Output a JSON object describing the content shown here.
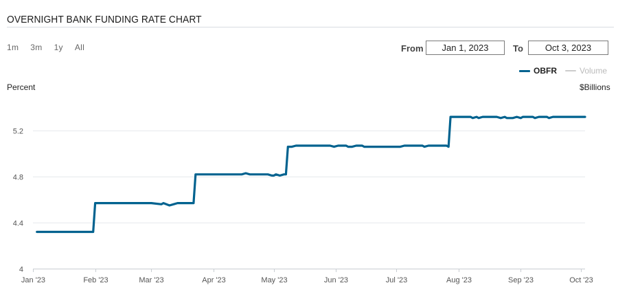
{
  "header": {
    "title": "OVERNIGHT BANK FUNDING RATE CHART"
  },
  "ranges": [
    "1m",
    "3m",
    "1y",
    "All"
  ],
  "date_range": {
    "from_label": "From",
    "from_value": "Jan 1, 2023",
    "to_label": "To",
    "to_value": "Oct 3, 2023"
  },
  "legend": [
    {
      "name": "OBFR",
      "color": "#00628f",
      "active": true
    },
    {
      "name": "Volume",
      "color": "#cccccc",
      "active": false
    }
  ],
  "axes": {
    "left_title": "Percent",
    "right_title": "$Billions"
  },
  "colors": {
    "line": "#00628f",
    "grid": "#e6e9ec",
    "axis": "#c8cdd2",
    "tick_text": "#555555"
  },
  "chart_data": {
    "type": "line",
    "title": "OVERNIGHT BANK FUNDING RATE CHART",
    "ylabel": "Percent",
    "y2label": "$Billions",
    "ylim": [
      4,
      5.5
    ],
    "yticks": [
      "4",
      "4.4",
      "4.8",
      "5.2"
    ],
    "ytick_values": [
      4,
      4.4,
      4.8,
      5.2
    ],
    "xlim": [
      "2023-01-01",
      "2023-10-03"
    ],
    "xticks": [
      "Jan '23",
      "Feb '23",
      "Mar '23",
      "Apr '23",
      "May '23",
      "Jun '23",
      "Jul '23",
      "Aug '23",
      "Sep '23",
      "Oct '23"
    ],
    "xtick_dates": [
      "2023-01-01",
      "2023-02-01",
      "2023-03-01",
      "2023-04-01",
      "2023-05-01",
      "2023-06-01",
      "2023-07-01",
      "2023-08-01",
      "2023-09-01",
      "2023-10-01"
    ],
    "grid": true,
    "legend_position": "top-right",
    "series": [
      {
        "name": "OBFR",
        "points": [
          [
            "2023-01-03",
            4.32
          ],
          [
            "2023-01-31",
            4.32
          ],
          [
            "2023-02-01",
            4.57
          ],
          [
            "2023-02-28",
            4.57
          ],
          [
            "2023-03-01",
            4.57
          ],
          [
            "2023-03-06",
            4.56
          ],
          [
            "2023-03-07",
            4.57
          ],
          [
            "2023-03-10",
            4.55
          ],
          [
            "2023-03-12",
            4.56
          ],
          [
            "2023-03-14",
            4.57
          ],
          [
            "2023-03-22",
            4.57
          ],
          [
            "2023-03-23",
            4.82
          ],
          [
            "2023-04-15",
            4.82
          ],
          [
            "2023-04-17",
            4.83
          ],
          [
            "2023-04-19",
            4.82
          ],
          [
            "2023-04-28",
            4.82
          ],
          [
            "2023-04-30",
            4.81
          ],
          [
            "2023-05-01",
            4.81
          ],
          [
            "2023-05-02",
            4.82
          ],
          [
            "2023-05-04",
            4.81
          ],
          [
            "2023-05-06",
            4.82
          ],
          [
            "2023-05-07",
            4.82
          ],
          [
            "2023-05-08",
            5.06
          ],
          [
            "2023-05-10",
            5.06
          ],
          [
            "2023-05-12",
            5.07
          ],
          [
            "2023-05-29",
            5.07
          ],
          [
            "2023-05-31",
            5.06
          ],
          [
            "2023-06-02",
            5.07
          ],
          [
            "2023-06-06",
            5.07
          ],
          [
            "2023-06-07",
            5.06
          ],
          [
            "2023-06-09",
            5.06
          ],
          [
            "2023-06-11",
            5.07
          ],
          [
            "2023-06-14",
            5.07
          ],
          [
            "2023-06-15",
            5.06
          ],
          [
            "2023-07-03",
            5.06
          ],
          [
            "2023-07-05",
            5.07
          ],
          [
            "2023-07-14",
            5.07
          ],
          [
            "2023-07-15",
            5.06
          ],
          [
            "2023-07-17",
            5.07
          ],
          [
            "2023-07-26",
            5.07
          ],
          [
            "2023-07-27",
            5.06
          ],
          [
            "2023-07-28",
            5.32
          ],
          [
            "2023-08-07",
            5.32
          ],
          [
            "2023-08-08",
            5.31
          ],
          [
            "2023-08-10",
            5.32
          ],
          [
            "2023-08-11",
            5.31
          ],
          [
            "2023-08-13",
            5.32
          ],
          [
            "2023-08-20",
            5.32
          ],
          [
            "2023-08-22",
            5.31
          ],
          [
            "2023-08-24",
            5.32
          ],
          [
            "2023-08-25",
            5.31
          ],
          [
            "2023-08-28",
            5.31
          ],
          [
            "2023-08-30",
            5.32
          ],
          [
            "2023-09-01",
            5.31
          ],
          [
            "2023-09-02",
            5.32
          ],
          [
            "2023-09-07",
            5.32
          ],
          [
            "2023-09-08",
            5.31
          ],
          [
            "2023-09-10",
            5.32
          ],
          [
            "2023-09-14",
            5.32
          ],
          [
            "2023-09-15",
            5.31
          ],
          [
            "2023-09-17",
            5.32
          ],
          [
            "2023-10-03",
            5.32
          ]
        ]
      }
    ]
  }
}
